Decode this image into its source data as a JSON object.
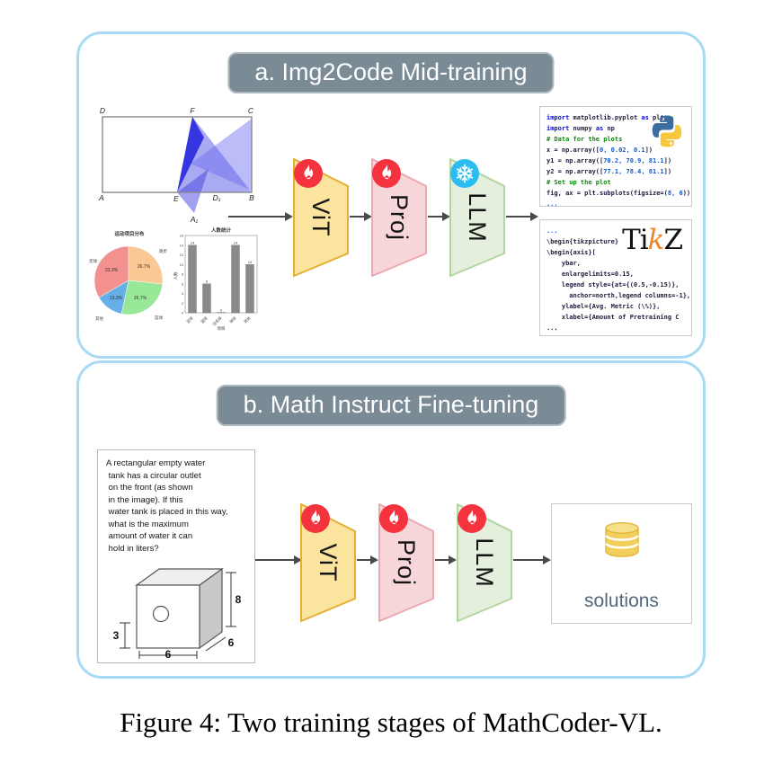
{
  "figure": {
    "caption": "Figure 4: Two training stages of MathCoder-VL."
  },
  "panel_a": {
    "title": "a. Img2Code Mid-training",
    "pipeline": {
      "vit": "ViT",
      "proj": "Proj",
      "llm": "LLM"
    },
    "geometry": {
      "labels": [
        "D",
        "F",
        "C",
        "A",
        "E",
        "D₁",
        "B",
        "A₁"
      ]
    },
    "python_box": {
      "logo": "python-logo",
      "lines": [
        [
          [
            "k",
            "import"
          ],
          [
            "d",
            " matplotlib.pyplot "
          ],
          [
            "k",
            "as"
          ],
          [
            "d",
            " plt"
          ]
        ],
        [
          [
            "k",
            "import"
          ],
          [
            "d",
            " numpy "
          ],
          [
            "k",
            "as"
          ],
          [
            "d",
            " np"
          ]
        ],
        [
          [
            "c",
            "# Data for the plots"
          ]
        ],
        [
          [
            "d",
            "x = np.array(["
          ],
          [
            "n",
            "0, 0.02, 0.1"
          ],
          [
            "d",
            "])"
          ]
        ],
        [
          [
            "d",
            "y1 = np.array(["
          ],
          [
            "n",
            "70.2, 70.9, 81.1"
          ],
          [
            "d",
            "])"
          ]
        ],
        [
          [
            "d",
            "y2 = np.array(["
          ],
          [
            "n",
            "77.1, 78.4, 81.1"
          ],
          [
            "d",
            "])"
          ]
        ],
        [
          [
            "c",
            "# Set up the plot"
          ]
        ],
        [
          [
            "d",
            "fig, ax = plt.subplots(figsize=("
          ],
          [
            "n",
            "8, 6"
          ],
          [
            "d",
            "))"
          ]
        ],
        [
          [
            "n",
            "..."
          ]
        ]
      ]
    },
    "tikz_box": {
      "logo": {
        "ti": "Ti",
        "k": "k",
        "z": "Z"
      },
      "lines": [
        [
          [
            "n",
            "..."
          ]
        ],
        [
          [
            "d",
            "\\begin{tikzpicture}"
          ]
        ],
        [
          [
            "d",
            "\\begin{axis}["
          ]
        ],
        [
          [
            "d",
            "    ybar,"
          ]
        ],
        [
          [
            "d",
            "    enlargelimits=0.15,"
          ]
        ],
        [
          [
            "d",
            "    legend style={at={(0.5,-0.15)},"
          ]
        ],
        [
          [
            "d",
            "      anchor=north,legend columns=-1},"
          ]
        ],
        [
          [
            "d",
            "    ylabel={Avg. Metric (\\%)},"
          ]
        ],
        [
          [
            "d",
            "    xlabel={Amount of Pretraining C"
          ]
        ],
        [
          [
            "b",
            "..."
          ]
        ]
      ]
    }
  },
  "panel_b": {
    "title": "b. Math Instruct Fine-tuning",
    "pipeline": {
      "vit": "ViT",
      "proj": "Proj",
      "llm": "LLM"
    },
    "question": {
      "lines": [
        "A rectangular empty water",
        " tank has a circular outlet",
        " on the front (as shown",
        " in the image). If this",
        " water tank is placed in this way,",
        " what is the maximum",
        " amount of water it can",
        " hold in liters?"
      ]
    },
    "box_dims": {
      "height": "8",
      "depth": "6",
      "width": "6",
      "outlet_height": "3"
    },
    "solutions_label": "solutions"
  },
  "colors": {
    "panel_border": "#A9DAF4",
    "banner_bg": "#7A8B96",
    "vit_fill": "#FBE49E",
    "vit_stroke": "#E5AE34",
    "proj_fill": "#F6D6D9",
    "proj_stroke": "#EBA9B1",
    "llm_fill": "#E4F0DD",
    "llm_stroke": "#B2D6A2",
    "fire_badge": "#F5333F",
    "snow_badge": "#2BBDEF",
    "triangle_blue": "#3A3AE8"
  },
  "chart_data": [
    {
      "type": "pie",
      "title": "运动项目分布",
      "categories": [
        "跑步",
        "篮球",
        "其他",
        "足球"
      ],
      "values": [
        26.7,
        26.7,
        13.3,
        33.3
      ],
      "labels_pct": [
        "26.7%",
        "26.7%",
        "13.3%",
        "33.3%"
      ],
      "colors": [
        "#F9C894",
        "#99E899",
        "#66AEE8",
        "#F2918E"
      ],
      "legend_position": "none"
    },
    {
      "type": "bar",
      "title": "人数统计",
      "categories": [
        "足球",
        "篮球",
        "羽毛球",
        "排球",
        "其他"
      ],
      "values": [
        14,
        6,
        0,
        14,
        10
      ],
      "yticks": [
        0,
        2,
        4,
        6,
        8,
        10,
        12,
        14,
        16
      ],
      "xlabel": "项目",
      "ylabel": "人数",
      "ylim": [
        0,
        16
      ],
      "bar_color": "#8A8A8A",
      "grid": false
    }
  ]
}
